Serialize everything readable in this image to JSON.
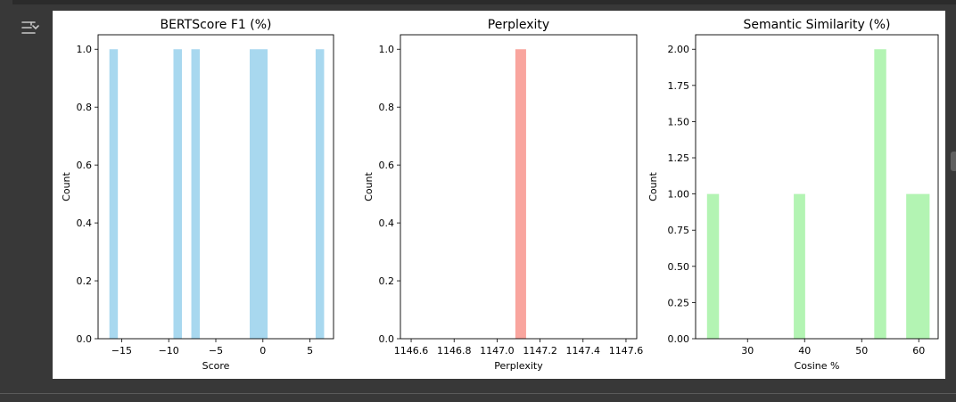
{
  "toolbar": {
    "icon": "output-settings-icon"
  },
  "chart_data": [
    {
      "type": "bar",
      "title": "BERTScore F1 (%)",
      "xlabel": "Score",
      "ylabel": "Count",
      "xlim": [
        -17.5,
        7.5
      ],
      "ylim": [
        0,
        1.05
      ],
      "color": "#a8d8ef",
      "xticks": [
        -15,
        -10,
        -5,
        0,
        5
      ],
      "xtick_labels": [
        "−15",
        "−10",
        "−5",
        "0",
        "5"
      ],
      "yticks": [
        0,
        0.2,
        0.4,
        0.6,
        0.8,
        1.0
      ],
      "ytick_labels": [
        "0.0",
        "0.2",
        "0.4",
        "0.6",
        "0.8",
        "1.0"
      ],
      "bins": [
        {
          "x0": -16.3,
          "x1": -15.4,
          "count": 1
        },
        {
          "x0": -9.5,
          "x1": -8.6,
          "count": 1
        },
        {
          "x0": -7.6,
          "x1": -6.7,
          "count": 1
        },
        {
          "x0": -1.4,
          "x1": 0.5,
          "count": 1
        },
        {
          "x0": 5.6,
          "x1": 6.5,
          "count": 1
        }
      ]
    },
    {
      "type": "bar",
      "title": "Perplexity",
      "xlabel": "Perplexity",
      "ylabel": "Count",
      "xlim": [
        1146.55,
        1147.65
      ],
      "ylim": [
        0,
        1.05
      ],
      "color": "#f9a59e",
      "xticks": [
        1146.6,
        1146.8,
        1147.0,
        1147.2,
        1147.4,
        1147.6
      ],
      "xtick_labels": [
        "1146.6",
        "1146.8",
        "1147.0",
        "1147.2",
        "1147.4",
        "1147.6"
      ],
      "yticks": [
        0,
        0.2,
        0.4,
        0.6,
        0.8,
        1.0
      ],
      "ytick_labels": [
        "0.0",
        "0.2",
        "0.4",
        "0.6",
        "0.8",
        "1.0"
      ],
      "bins": [
        {
          "x0": 1147.085,
          "x1": 1147.135,
          "count": 1
        }
      ]
    },
    {
      "type": "bar",
      "title": "Semantic Similarity (%)",
      "xlabel": "Cosine %",
      "ylabel": "Count",
      "xlim": [
        20.9,
        63.4
      ],
      "ylim": [
        0,
        2.1
      ],
      "color": "#b3f4b3",
      "xticks": [
        30,
        40,
        50,
        60
      ],
      "xtick_labels": [
        "30",
        "40",
        "50",
        "60"
      ],
      "yticks": [
        0,
        0.25,
        0.5,
        0.75,
        1.0,
        1.25,
        1.5,
        1.75,
        2.0
      ],
      "ytick_labels": [
        "0.00",
        "0.25",
        "0.50",
        "0.75",
        "1.00",
        "1.25",
        "1.50",
        "1.75",
        "2.00"
      ],
      "bins": [
        {
          "x0": 22.9,
          "x1": 25.0,
          "count": 1
        },
        {
          "x0": 38.1,
          "x1": 40.1,
          "count": 1
        },
        {
          "x0": 52.2,
          "x1": 54.3,
          "count": 2
        },
        {
          "x0": 57.8,
          "x1": 61.9,
          "count": 1
        }
      ]
    }
  ]
}
